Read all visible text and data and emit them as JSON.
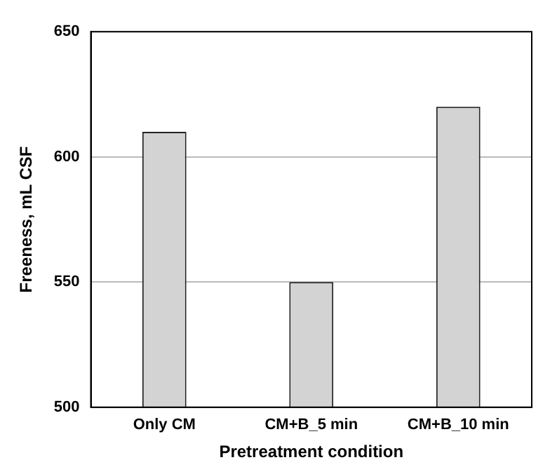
{
  "chart_data": {
    "type": "bar",
    "xlabel": "Pretreatment condition",
    "ylabel": "Freeness, mL CSF",
    "categories": [
      "Only CM",
      "CM+B_5 min",
      "CM+B_10 min"
    ],
    "values": [
      610,
      550,
      620
    ],
    "color": "#d3d3d3",
    "ylim": [
      500,
      650
    ],
    "yticks": [
      500,
      550,
      600,
      650
    ],
    "grid": "y"
  }
}
